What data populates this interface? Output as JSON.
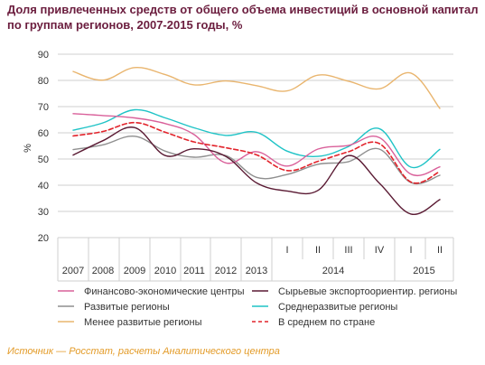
{
  "title": "Доля привлеченных средств от общего объема инвестиций в основной капитал по группам регионов, 2007-2015 годы, %",
  "source": "Источник — Росстат, расчеты Аналитического центра",
  "colors": {
    "finance": "#d9609a",
    "resource": "#5a1a33",
    "developed": "#8f8f8f",
    "middle": "#1ec3c6",
    "less": "#e9b56e",
    "average": "#e2232b",
    "grid": "#cfcfcf",
    "text": "#333333",
    "title": "#6b1d3e",
    "source": "#e39b28"
  },
  "chart_data": {
    "type": "line",
    "title": "Доля привлеченных средств от общего объема инвестиций в основной капитал по группам регионов, 2007-2015 годы, %",
    "ylabel": "%",
    "ylim": [
      20,
      90
    ],
    "yticks": [
      20,
      30,
      40,
      50,
      60,
      70,
      80,
      90
    ],
    "grid": true,
    "legend_position": "bottom",
    "x": [
      "2007",
      "2008",
      "2009",
      "2010",
      "2011",
      "2012",
      "2013",
      "2014 I",
      "2014 II",
      "2014 III",
      "2014 IV",
      "2015 I",
      "2015 II"
    ],
    "x_labels_top": [
      "",
      "",
      "",
      "",
      "",
      "",
      "",
      "I",
      "II",
      "III",
      "IV",
      "I",
      "II"
    ],
    "x_labels_bottom": [
      "2007",
      "2008",
      "2009",
      "2010",
      "2011",
      "2012",
      "2013"
    ],
    "x_groups": [
      {
        "label": "2014",
        "start": 7,
        "end": 10
      },
      {
        "label": "2015",
        "start": 11,
        "end": 12
      }
    ],
    "series": [
      {
        "name": "Финансово-экономические центры",
        "key": "finance",
        "dashed": false,
        "values": [
          67.3,
          66.6,
          65.7,
          63.5,
          59.3,
          48.5,
          52.8,
          47.3,
          53.8,
          55.2,
          58.2,
          44.2,
          47.0
        ]
      },
      {
        "name": "Сырьевые экспортоориентир. регионы",
        "key": "resource",
        "dashed": false,
        "values": [
          51.5,
          57.0,
          62.0,
          51.3,
          53.9,
          51.0,
          40.9,
          37.8,
          38.0,
          51.3,
          40.8,
          29.0,
          34.5
        ]
      },
      {
        "name": "Развитые регионы",
        "key": "developed",
        "dashed": false,
        "values": [
          53.6,
          55.4,
          58.7,
          53.0,
          50.7,
          51.3,
          43.0,
          44.1,
          48.0,
          49.0,
          53.8,
          41.0,
          43.8
        ]
      },
      {
        "name": "Среднеразвитые регионы",
        "key": "middle",
        "dashed": false,
        "values": [
          61.0,
          63.8,
          68.8,
          65.7,
          61.9,
          59.0,
          60.2,
          53.0,
          51.0,
          54.8,
          61.6,
          46.9,
          53.7
        ]
      },
      {
        "name": "Менее развитые регионы",
        "key": "less",
        "dashed": false,
        "values": [
          83.4,
          80.1,
          84.9,
          82.2,
          78.3,
          79.8,
          78.0,
          76.0,
          82.0,
          79.7,
          76.8,
          82.8,
          69.3
        ]
      },
      {
        "name": "В среднем по стране",
        "key": "average",
        "dashed": true,
        "values": [
          58.8,
          60.5,
          63.9,
          60.2,
          56.5,
          54.3,
          51.6,
          45.6,
          49.1,
          52.8,
          55.9,
          41.2,
          45.2
        ]
      }
    ]
  }
}
